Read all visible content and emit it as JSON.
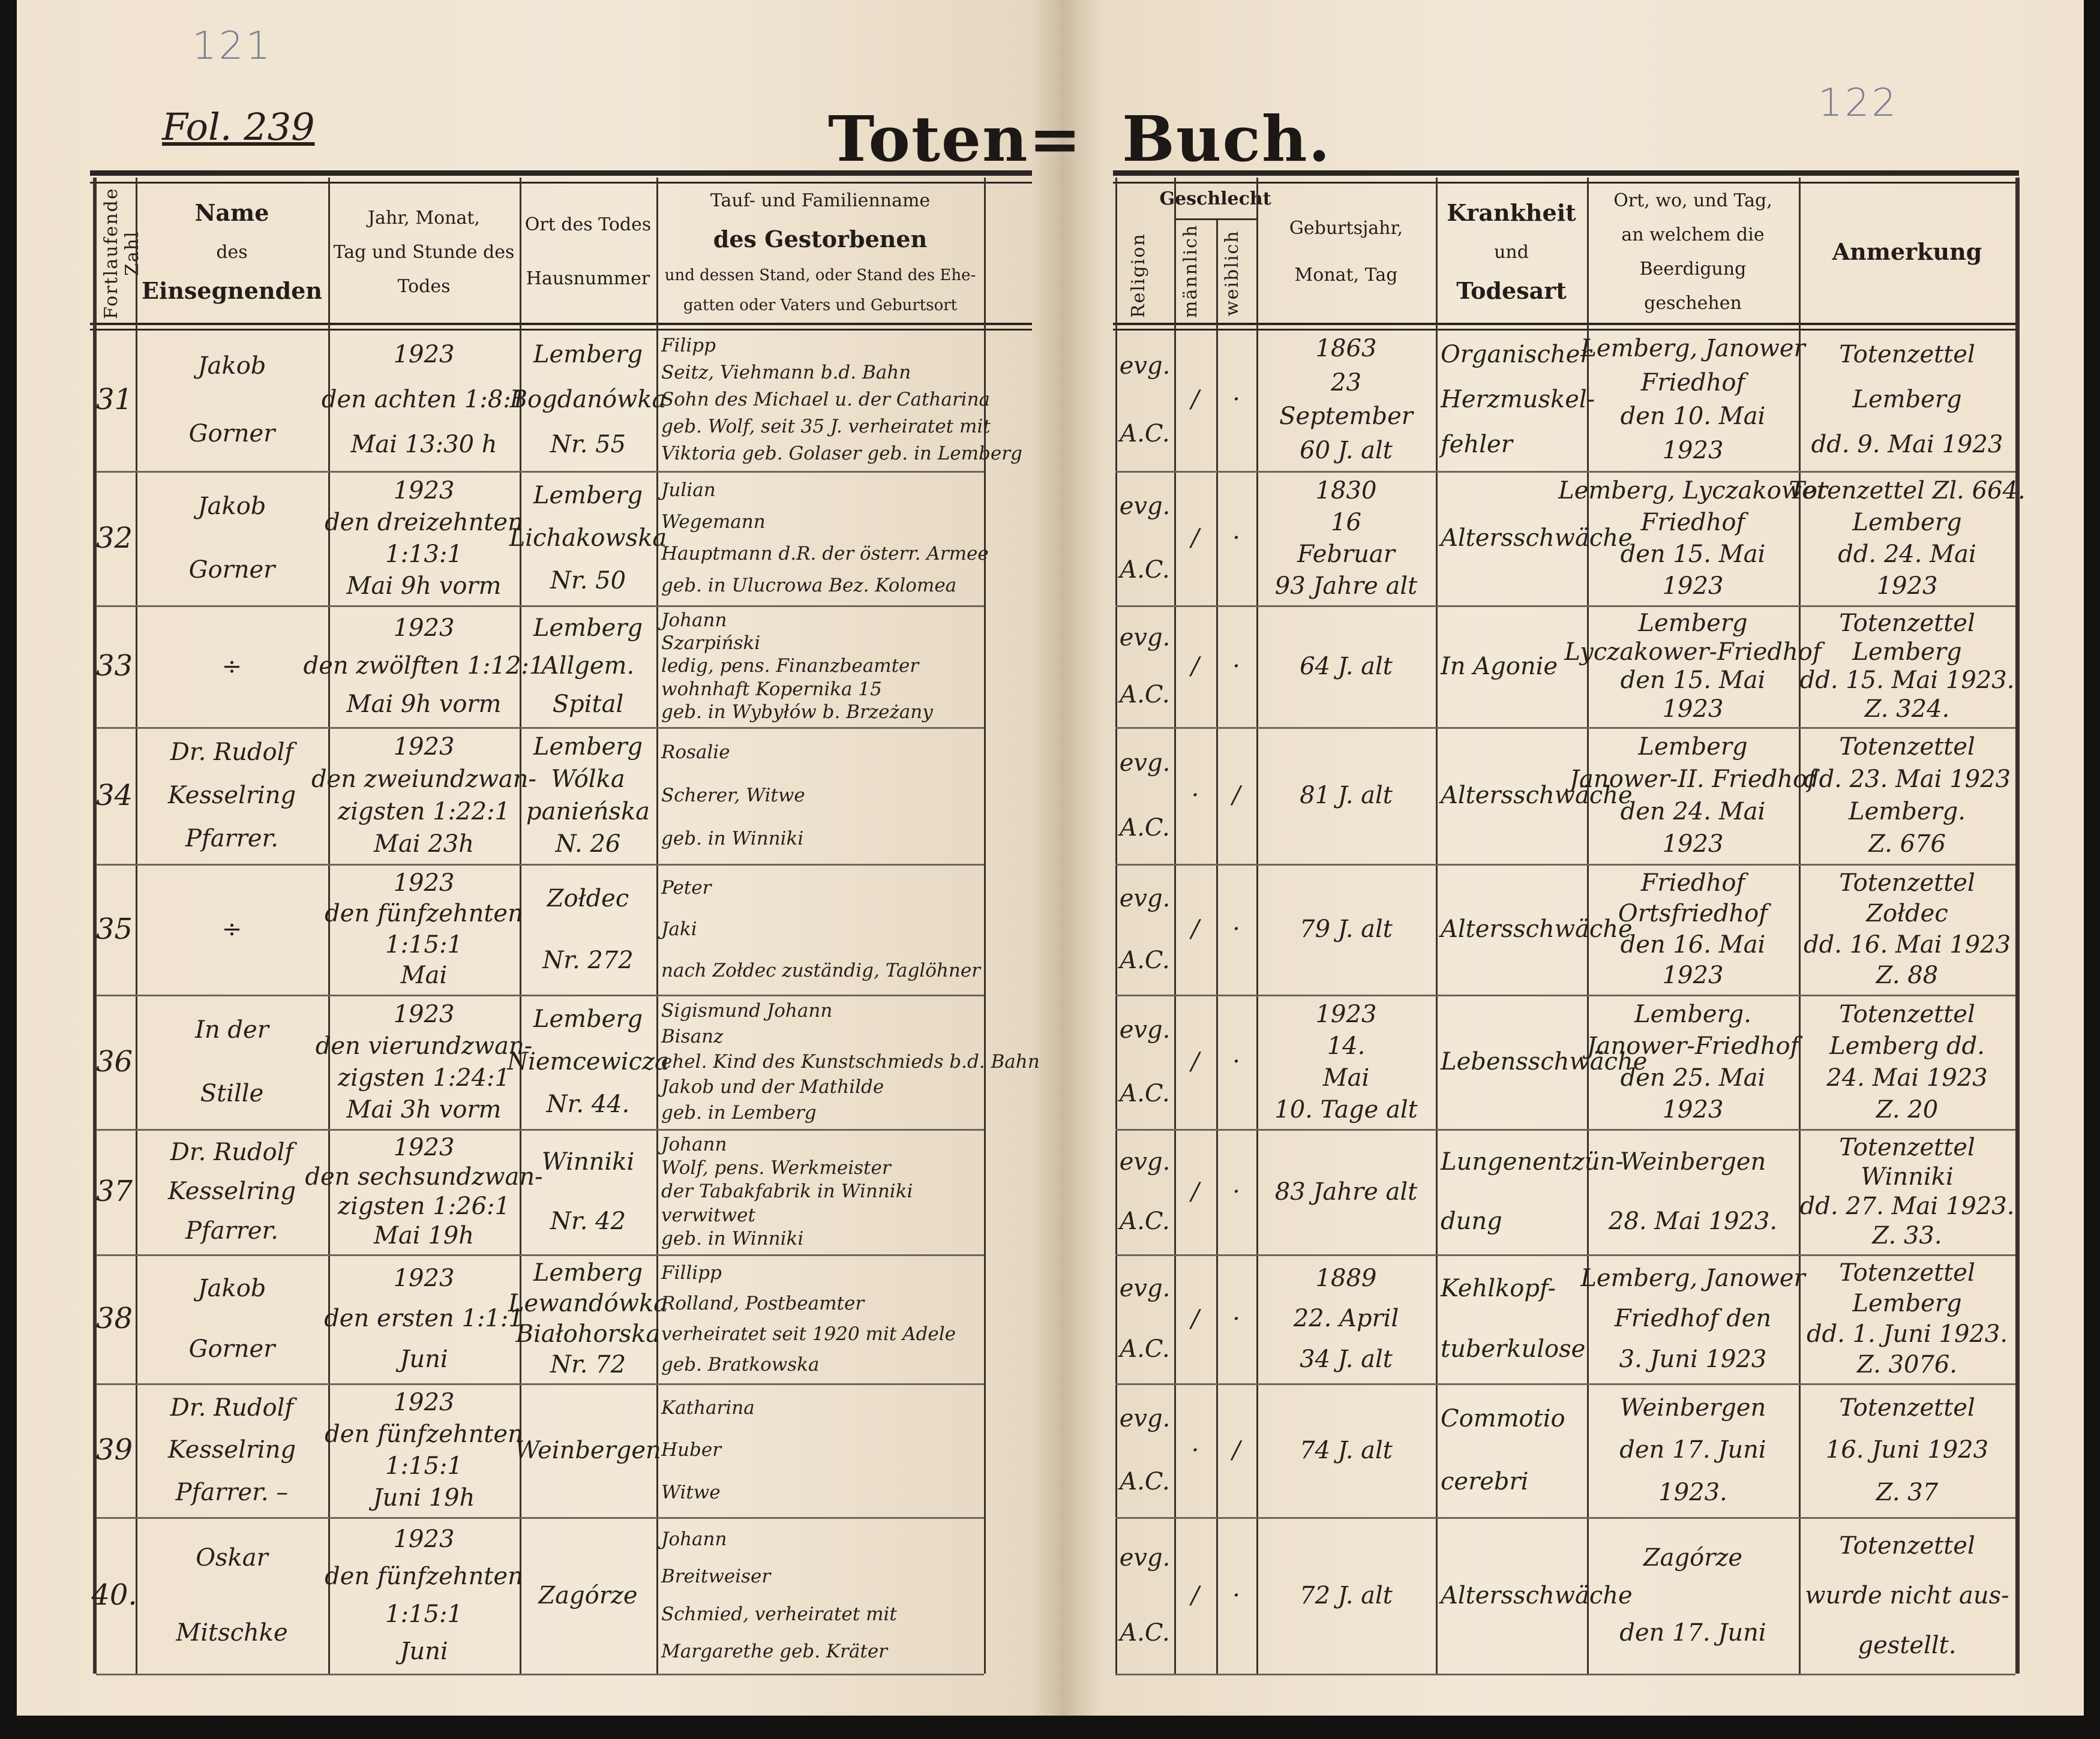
{
  "book": {
    "page_left_number": "121",
    "page_right_number": "122",
    "folio": "Fol. 239",
    "title_left": "Toten=",
    "title_right": "Buch."
  },
  "headers": {
    "number": "Fortlaufende Zahl",
    "officiant": {
      "l1": "Name",
      "l2": "des",
      "l3": "Einsegnenden"
    },
    "date": {
      "l1": "Jahr, Monat,",
      "l2": "Tag und Stunde des",
      "l3": "Todes"
    },
    "place": {
      "l1": "Ort des Todes",
      "l2": "Hausnummer"
    },
    "deceased": {
      "l1": "Tauf- und Familienname",
      "l2": "des Gestorbenen",
      "l3": "und dessen Stand, oder Stand des Ehe-",
      "l4": "gatten oder Vaters und Geburtsort"
    },
    "religion": "Religion",
    "sex": "Geschlecht",
    "male": "männlich",
    "female": "weiblich",
    "birth": {
      "l1": "Geburtsjahr,",
      "l2": "Monat, Tag"
    },
    "cause": {
      "l1": "Krankheit",
      "l2": "und",
      "l3": "Todesart"
    },
    "burial": {
      "l1": "Ort, wo, und Tag,",
      "l2": "an welchem die Beerdigung",
      "l3": "geschehen"
    },
    "remarks": "Anmerkung"
  },
  "entries": [
    {
      "number": "31",
      "officiant": [
        "Jakob",
        "Gorner"
      ],
      "date": [
        "1923",
        "den achten 1:8:1",
        "Mai   13:30 h"
      ],
      "place": [
        "Lemberg",
        "Bogdanówka",
        "Nr. 55"
      ],
      "deceased": [
        "Filipp",
        "Seitz, Viehmann b.d. Bahn",
        "Sohn des Michael u. der Catharina",
        "geb. Wolf, seit 35 J. verheiratet mit",
        "Viktoria geb. Golaser   geb. in Lemberg"
      ],
      "religion": [
        "evg.",
        "A.C."
      ],
      "male": "/",
      "female": "·",
      "birth": [
        "1863",
        "23",
        "September",
        "60 J. alt"
      ],
      "cause": [
        "Organischer",
        "Herzmuskel-",
        "fehler"
      ],
      "burial": [
        "Lemberg, Janower",
        "Friedhof",
        "den 10. Mai",
        "1923"
      ],
      "remarks": [
        "Totenzettel",
        "Lemberg",
        "dd. 9. Mai 1923"
      ]
    },
    {
      "number": "32",
      "officiant": [
        "Jakob",
        "Gorner"
      ],
      "date": [
        "1923",
        "den dreizehnten",
        "1:13:1",
        "Mai   9h vorm"
      ],
      "place": [
        "Lemberg",
        "Lichakowska",
        "Nr. 50"
      ],
      "deceased": [
        "Julian",
        "Wegemann",
        "Hauptmann d.R. der österr. Armee",
        "geb. in Ulucrowa Bez. Kolomea"
      ],
      "religion": [
        "evg.",
        "A.C."
      ],
      "male": "/",
      "female": "·",
      "birth": [
        "1830",
        "16",
        "Februar",
        "93 Jahre alt"
      ],
      "cause": [
        "Altersschwäche"
      ],
      "burial": [
        "Lemberg, Lyczakower",
        "Friedhof",
        "den 15. Mai",
        "1923"
      ],
      "remarks": [
        "Totenzettel Zl. 664.",
        "Lemberg",
        "dd. 24. Mai",
        "1923"
      ]
    },
    {
      "number": "33",
      "officiant": [
        "÷"
      ],
      "date": [
        "1923",
        "den zwölften 1:12:1",
        "Mai   9h vorm"
      ],
      "place": [
        "Lemberg",
        "Allgem.",
        "Spital"
      ],
      "deceased": [
        "Johann",
        "Szarpiński",
        "ledig, pens. Finanzbeamter",
        "wohnhaft Kopernika 15",
        "geb. in Wybyłów b. Brzeżany"
      ],
      "religion": [
        "evg.",
        "A.C."
      ],
      "male": "/",
      "female": "·",
      "birth": [
        "64 J. alt"
      ],
      "cause": [
        "In Agonie"
      ],
      "burial": [
        "Lemberg",
        "Lyczakower-Friedhof",
        "den 15. Mai",
        "1923"
      ],
      "remarks": [
        "Totenzettel",
        "Lemberg",
        "dd. 15. Mai 1923.",
        "Z. 324."
      ]
    },
    {
      "number": "34",
      "officiant": [
        "Dr. Rudolf",
        "Kesselring",
        "Pfarrer."
      ],
      "date": [
        "1923",
        "den zweiundzwan-",
        "zigsten 1:22:1",
        "Mai   23h"
      ],
      "place": [
        "Lemberg",
        "Wólka",
        "panieńska",
        "N. 26"
      ],
      "deceased": [
        "Rosalie",
        "Scherer, Witwe",
        "geb. in Winniki"
      ],
      "religion": [
        "evg.",
        "A.C."
      ],
      "male": "·",
      "female": "/",
      "birth": [
        "81 J. alt"
      ],
      "cause": [
        "Altersschwäche"
      ],
      "burial": [
        "Lemberg",
        "Janower-II. Friedhof",
        "den 24. Mai",
        "1923"
      ],
      "remarks": [
        "Totenzettel",
        "dd. 23. Mai 1923",
        "Lemberg.",
        "Z. 676"
      ]
    },
    {
      "number": "35",
      "officiant": [
        "÷"
      ],
      "date": [
        "1923",
        "den fünfzehnten",
        "1:15:1",
        "Mai"
      ],
      "place": [
        "Zołdec",
        "Nr. 272"
      ],
      "deceased": [
        "Peter",
        "Jaki",
        "nach Zołdec zuständig, Taglöhner"
      ],
      "religion": [
        "evg.",
        "A.C."
      ],
      "male": "/",
      "female": "·",
      "birth": [
        "79 J. alt"
      ],
      "cause": [
        "Altersschwäche"
      ],
      "burial": [
        "Friedhof",
        "Ortsfriedhof",
        "den 16. Mai",
        "1923"
      ],
      "remarks": [
        "Totenzettel",
        "Zołdec",
        "dd. 16. Mai 1923",
        "Z. 88"
      ]
    },
    {
      "number": "36",
      "officiant": [
        "In der",
        "Stille"
      ],
      "date": [
        "1923",
        "den vierundzwan-",
        "zigsten 1:24:1",
        "Mai   3h vorm"
      ],
      "place": [
        "Lemberg",
        "Niemcewicza",
        "Nr. 44."
      ],
      "deceased": [
        "Sigismund Johann",
        "Bisanz",
        "ehel. Kind des Kunstschmieds b.d. Bahn",
        "Jakob und der Mathilde",
        "geb. in Lemberg"
      ],
      "religion": [
        "evg.",
        "A.C."
      ],
      "male": "/",
      "female": "·",
      "birth": [
        "1923",
        "14.",
        "Mai",
        "10. Tage alt"
      ],
      "cause": [
        "Lebensschwäche"
      ],
      "burial": [
        "Lemberg.",
        "Janower-Friedhof",
        "den 25. Mai",
        "1923"
      ],
      "remarks": [
        "Totenzettel",
        "Lemberg dd.",
        "24. Mai 1923",
        "Z. 20"
      ]
    },
    {
      "number": "37",
      "officiant": [
        "Dr. Rudolf",
        "Kesselring",
        "Pfarrer."
      ],
      "date": [
        "1923",
        "den sechsundzwan-",
        "zigsten 1:26:1",
        "Mai   19h"
      ],
      "place": [
        "Winniki",
        "Nr. 42"
      ],
      "deceased": [
        "Johann",
        "Wolf, pens. Werkmeister",
        "der Tabakfabrik in Winniki",
        "verwitwet",
        "geb. in Winniki"
      ],
      "religion": [
        "evg.",
        "A.C."
      ],
      "male": "/",
      "female": "·",
      "birth": [
        "83 Jahre alt"
      ],
      "cause": [
        "Lungenentzün-",
        "dung"
      ],
      "burial": [
        "Weinbergen",
        "28. Mai 1923."
      ],
      "remarks": [
        "Totenzettel",
        "Winniki",
        "dd. 27. Mai 1923.",
        "Z. 33."
      ]
    },
    {
      "number": "38",
      "officiant": [
        "Jakob",
        "Gorner"
      ],
      "date": [
        "1923",
        "den ersten 1:1:1",
        "Juni"
      ],
      "place": [
        "Lemberg",
        "Lewandówka",
        "Białohorska",
        "Nr. 72"
      ],
      "deceased": [
        "Fillipp",
        "Rolland, Postbeamter",
        "verheiratet seit 1920 mit Adele",
        "geb. Bratkowska"
      ],
      "religion": [
        "evg.",
        "A.C."
      ],
      "male": "/",
      "female": "·",
      "birth": [
        "1889",
        "22. April",
        "34 J. alt"
      ],
      "cause": [
        "Kehlkopf-",
        "tuberkulose"
      ],
      "burial": [
        "Lemberg, Janower",
        "Friedhof den",
        "3. Juni 1923"
      ],
      "remarks": [
        "Totenzettel",
        "Lemberg",
        "dd. 1. Juni 1923.",
        "Z. 3076."
      ]
    },
    {
      "number": "39",
      "officiant": [
        "Dr. Rudolf",
        "Kesselring",
        "Pfarrer. –"
      ],
      "date": [
        "1923",
        "den fünfzehnten",
        "1:15:1",
        "Juni   19h"
      ],
      "place": [
        "Weinbergen"
      ],
      "deceased": [
        "Katharina",
        "Huber",
        "Witwe"
      ],
      "religion": [
        "evg.",
        "A.C."
      ],
      "male": "·",
      "female": "/",
      "birth": [
        "74 J. alt"
      ],
      "cause": [
        "Commotio",
        "cerebri"
      ],
      "burial": [
        "Weinbergen",
        "den 17. Juni",
        "1923."
      ],
      "remarks": [
        "Totenzettel",
        "16. Juni 1923",
        "Z. 37"
      ]
    },
    {
      "number": "40.",
      "officiant": [
        "Oskar",
        "Mitschke"
      ],
      "date": [
        "1923",
        "den fünfzehnten",
        "1:15:1",
        "Juni"
      ],
      "place": [
        "Zagórze"
      ],
      "deceased": [
        "Johann",
        "Breitweiser",
        "Schmied, verheiratet mit",
        "Margarethe geb. Kräter"
      ],
      "religion": [
        "evg.",
        "A.C."
      ],
      "male": "/",
      "female": "·",
      "birth": [
        "72 J. alt"
      ],
      "cause": [
        "Altersschwäche"
      ],
      "burial": [
        "Zagórze",
        "den 17. Juni"
      ],
      "remarks": [
        "Totenzettel",
        "wurde nicht aus-",
        "gestellt."
      ]
    }
  ]
}
